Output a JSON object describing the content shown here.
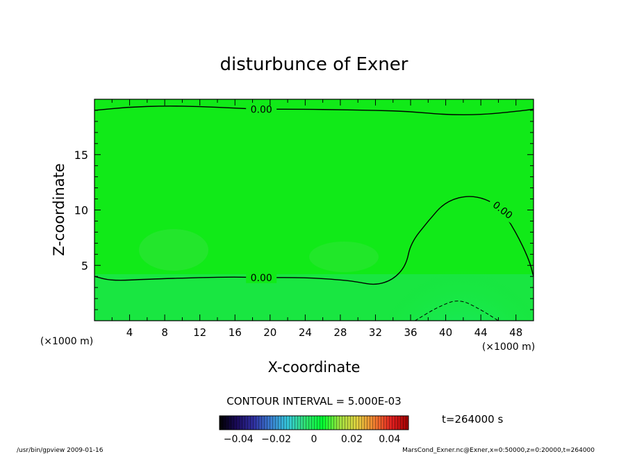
{
  "chart_data": {
    "type": "heatmap",
    "title": "disturbunce of Exner",
    "xlabel": "X-coordinate",
    "ylabel": "Z-coordinate",
    "x_unit_left": "(×1000 m)",
    "x_unit_right": "(×1000 m)",
    "xlim": [
      0,
      50
    ],
    "ylim": [
      0,
      20
    ],
    "xticks": [
      4,
      8,
      12,
      16,
      20,
      24,
      28,
      32,
      36,
      40,
      44,
      48
    ],
    "yticks": [
      5,
      10,
      15
    ],
    "contour_labels": [
      "0.00",
      "0.00",
      "0.00"
    ],
    "contour_interval_text": "CONTOUR INTERVAL = 5.000E-03",
    "time_text": "t=264000 s",
    "colorbar": {
      "ticks": [
        "−0.04",
        "−0.02",
        "0",
        "0.02",
        "0.04"
      ],
      "range": [
        -0.05,
        0.05
      ],
      "colors": [
        "#000000",
        "#1a0a5a",
        "#3030a0",
        "#3a7fd0",
        "#34c8d8",
        "#30e070",
        "#00ff30",
        "#a0e040",
        "#e0d040",
        "#f08030",
        "#e02020",
        "#a00000"
      ]
    },
    "field_colors": {
      "background": "#11ea18",
      "lower_band": "#1be546",
      "patch": "#31e33a",
      "dome": "#19e95a"
    },
    "contours": [
      {
        "level": 0.0,
        "style": "solid",
        "points": [
          [
            0,
            19.0
          ],
          [
            4,
            19.3
          ],
          [
            8,
            19.4
          ],
          [
            12,
            19.35
          ],
          [
            16,
            19.2
          ],
          [
            19,
            19.1
          ],
          [
            24,
            19.1
          ],
          [
            28,
            19.05
          ],
          [
            32,
            19.0
          ],
          [
            36,
            18.9
          ],
          [
            40,
            18.6
          ],
          [
            44,
            18.6
          ],
          [
            48,
            18.9
          ],
          [
            50,
            19.1
          ]
        ]
      },
      {
        "level": 0.0,
        "style": "solid",
        "points": [
          [
            0,
            4.0
          ],
          [
            2,
            3.6
          ],
          [
            6,
            3.75
          ],
          [
            12,
            3.9
          ],
          [
            16,
            3.95
          ],
          [
            19,
            3.9
          ],
          [
            24,
            3.9
          ],
          [
            28,
            3.7
          ],
          [
            30,
            3.5
          ],
          [
            32,
            3.2
          ],
          [
            34,
            3.7
          ],
          [
            35.5,
            5.0
          ],
          [
            36,
            7.0
          ],
          [
            38,
            9.0
          ],
          [
            40,
            10.8
          ],
          [
            43,
            11.4
          ],
          [
            46,
            10.5
          ],
          [
            48,
            8.0
          ],
          [
            49.5,
            5.5
          ],
          [
            50,
            4.0
          ]
        ]
      },
      {
        "level": -0.005,
        "style": "dashed",
        "points": [
          [
            36.5,
            0
          ],
          [
            39,
            1.2
          ],
          [
            41.5,
            2.0
          ],
          [
            44,
            1.0
          ],
          [
            46,
            0
          ]
        ]
      }
    ],
    "footer_left": "/usr/bin/gpview   2009-01-16",
    "footer_right": "MarsCond_Exner.nc@Exner,x=0:50000,z=0:20000,t=264000"
  }
}
